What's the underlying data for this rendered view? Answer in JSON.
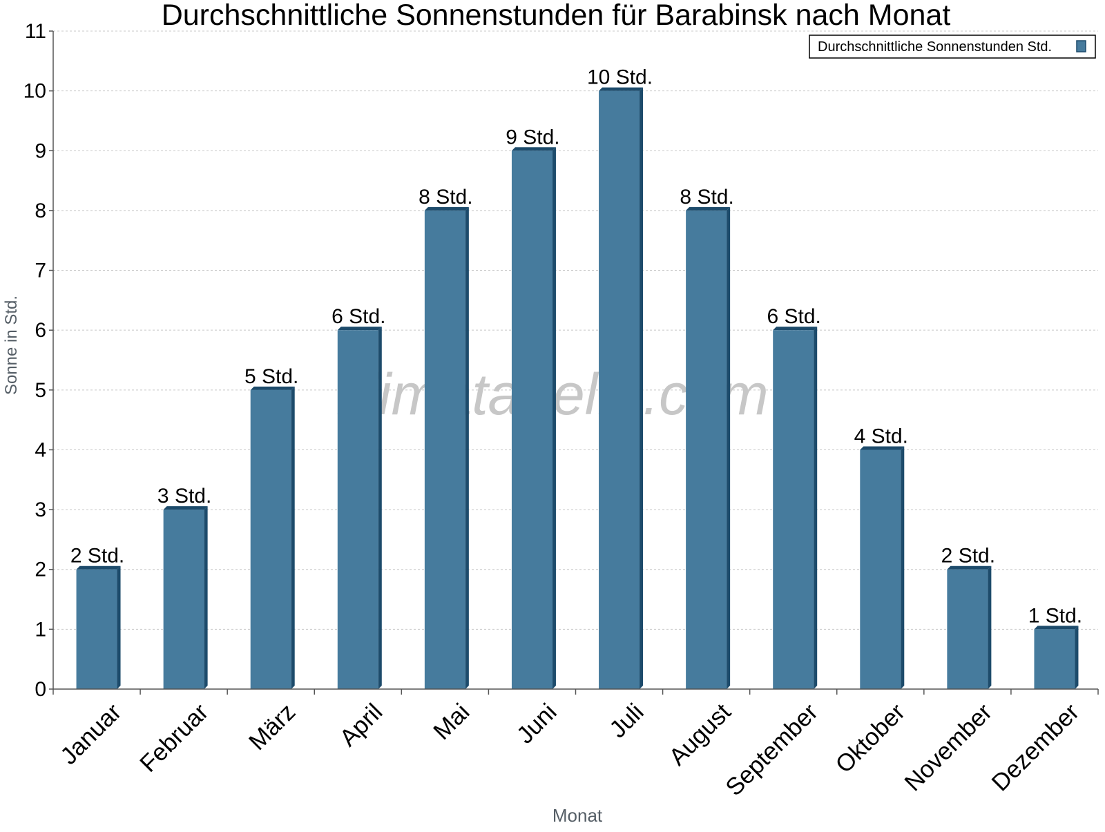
{
  "watermark": "klimatabelle.com",
  "chart_data": {
    "type": "bar",
    "title": "Durchschnittliche Sonnenstunden für Barabinsk nach Monat",
    "xlabel": "Monat",
    "ylabel": "Sonne in Std.",
    "categories": [
      "Januar",
      "Februar",
      "März",
      "April",
      "Mai",
      "Juni",
      "Juli",
      "August",
      "September",
      "Oktober",
      "November",
      "Dezember"
    ],
    "series": [
      {
        "name": "Durchschnittliche Sonnenstunden Std.",
        "values": [
          2,
          3,
          5,
          6,
          8,
          9,
          10,
          8,
          6,
          4,
          2,
          1
        ],
        "data_labels": [
          "2 Std.",
          "3 Std.",
          "5 Std.",
          "6 Std.",
          "8 Std.",
          "9 Std.",
          "10 Std.",
          "8 Std.",
          "6 Std.",
          "4 Std.",
          "2 Std.",
          "1 Std."
        ]
      }
    ],
    "ylim": [
      0,
      11
    ],
    "yticks": [
      0,
      1,
      2,
      3,
      4,
      5,
      6,
      7,
      8,
      9,
      10,
      11
    ],
    "grid": true,
    "legend_position": "top-right",
    "colors": {
      "bar": "#467b9d",
      "bar_top": "#3a6a8a",
      "bar_side": "#1d4b6b",
      "axis": "#555555",
      "grid": "#c8c8c8",
      "text": "#000000",
      "axis_title": "#555e66",
      "watermark": "#c7c7c7"
    }
  }
}
